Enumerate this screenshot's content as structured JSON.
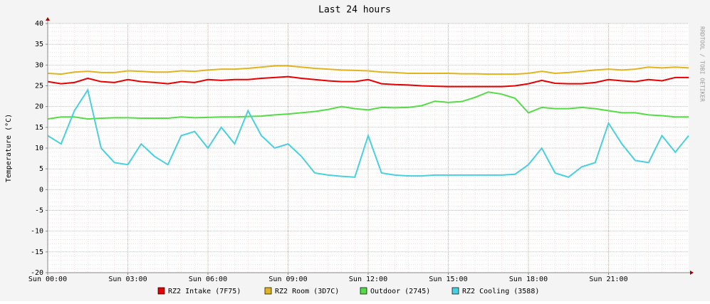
{
  "chart_data": {
    "type": "line",
    "title": "Last 24 hours",
    "y_label": "Temperature (°C)",
    "watermark": "RRDTOOL / TOBI OETIKER",
    "x": [
      0,
      0.5,
      1,
      1.5,
      2,
      2.5,
      3,
      3.5,
      4,
      4.5,
      5,
      5.5,
      6,
      6.5,
      7,
      7.5,
      8,
      8.5,
      9,
      9.5,
      10,
      10.5,
      11,
      11.5,
      12,
      12.5,
      13,
      13.5,
      14,
      14.5,
      15,
      15.5,
      16,
      16.5,
      17,
      17.5,
      18,
      18.5,
      19,
      19.5,
      20,
      20.5,
      21,
      21.5,
      22,
      22.5,
      23,
      23.5,
      24
    ],
    "xlim": [
      0,
      24
    ],
    "xticks": [
      {
        "value": 0,
        "label": "Sun 00:00"
      },
      {
        "value": 3,
        "label": "Sun 03:00"
      },
      {
        "value": 6,
        "label": "Sun 06:00"
      },
      {
        "value": 9,
        "label": "Sun 09:00"
      },
      {
        "value": 12,
        "label": "Sun 12:00"
      },
      {
        "value": 15,
        "label": "Sun 15:00"
      },
      {
        "value": 18,
        "label": "Sun 18:00"
      },
      {
        "value": 21,
        "label": "Sun 21:00"
      }
    ],
    "ylim": [
      -20,
      40
    ],
    "yticks": [
      -20,
      -15,
      -10,
      -5,
      0,
      5,
      10,
      15,
      20,
      25,
      30,
      35,
      40
    ],
    "grid": true,
    "series": [
      {
        "name": "RZ2 Intake (7F75)",
        "color": "#e60000",
        "values": [
          26,
          25.5,
          25.8,
          26.8,
          26,
          25.8,
          26.5,
          26,
          25.8,
          25.5,
          26,
          25.8,
          26.5,
          26.3,
          26.5,
          26.5,
          26.8,
          27,
          27.2,
          26.8,
          26.5,
          26.2,
          26,
          26,
          26.5,
          25.5,
          25.3,
          25.2,
          25,
          24.9,
          24.8,
          24.8,
          24.8,
          24.8,
          24.8,
          25,
          25.5,
          26.3,
          25.6,
          25.5,
          25.5,
          25.8,
          26.5,
          26.2,
          26,
          26.5,
          26.2,
          27,
          27
        ]
      },
      {
        "name": "RZ2 Room (3D7C)",
        "color": "#e2b321",
        "values": [
          28,
          27.8,
          28.3,
          28.5,
          28.2,
          28.2,
          28.6,
          28.5,
          28.3,
          28.3,
          28.6,
          28.5,
          28.8,
          29,
          29,
          29.2,
          29.5,
          29.8,
          29.8,
          29.5,
          29.2,
          29,
          28.8,
          28.7,
          28.6,
          28.3,
          28.2,
          28,
          28,
          28,
          28,
          27.9,
          27.9,
          27.8,
          27.8,
          27.8,
          28,
          28.5,
          28,
          28.2,
          28.5,
          28.8,
          29,
          28.8,
          29,
          29.5,
          29.3,
          29.5,
          29.3
        ]
      },
      {
        "name": "Outdoor (2745)",
        "color": "#54dc44",
        "values": [
          17,
          17.5,
          17.5,
          17,
          17.2,
          17.3,
          17.3,
          17.2,
          17.2,
          17.2,
          17.5,
          17.3,
          17.4,
          17.5,
          17.5,
          17.6,
          17.7,
          18,
          18.2,
          18.5,
          18.8,
          19.3,
          20,
          19.5,
          19.2,
          19.8,
          19.7,
          19.8,
          20.2,
          21.3,
          21,
          21.2,
          22.2,
          23.5,
          23,
          22,
          18.5,
          19.8,
          19.5,
          19.5,
          19.8,
          19.5,
          19,
          18.5,
          18.5,
          18,
          17.8,
          17.5,
          17.5
        ]
      },
      {
        "name": "RZ2 Cooling (3588)",
        "color": "#46d0e0",
        "values": [
          13,
          11,
          19,
          24,
          10,
          6.5,
          6,
          11,
          8,
          6,
          13,
          14,
          10,
          15,
          11,
          19,
          13,
          10,
          11,
          8,
          4,
          3.5,
          3.2,
          3,
          13,
          4,
          3.5,
          3.3,
          3.3,
          3.5,
          3.5,
          3.5,
          3.5,
          3.5,
          3.5,
          3.7,
          6,
          10,
          4,
          3,
          5.5,
          6.5,
          16,
          11,
          7,
          6.5,
          13,
          9,
          13
        ]
      }
    ]
  }
}
